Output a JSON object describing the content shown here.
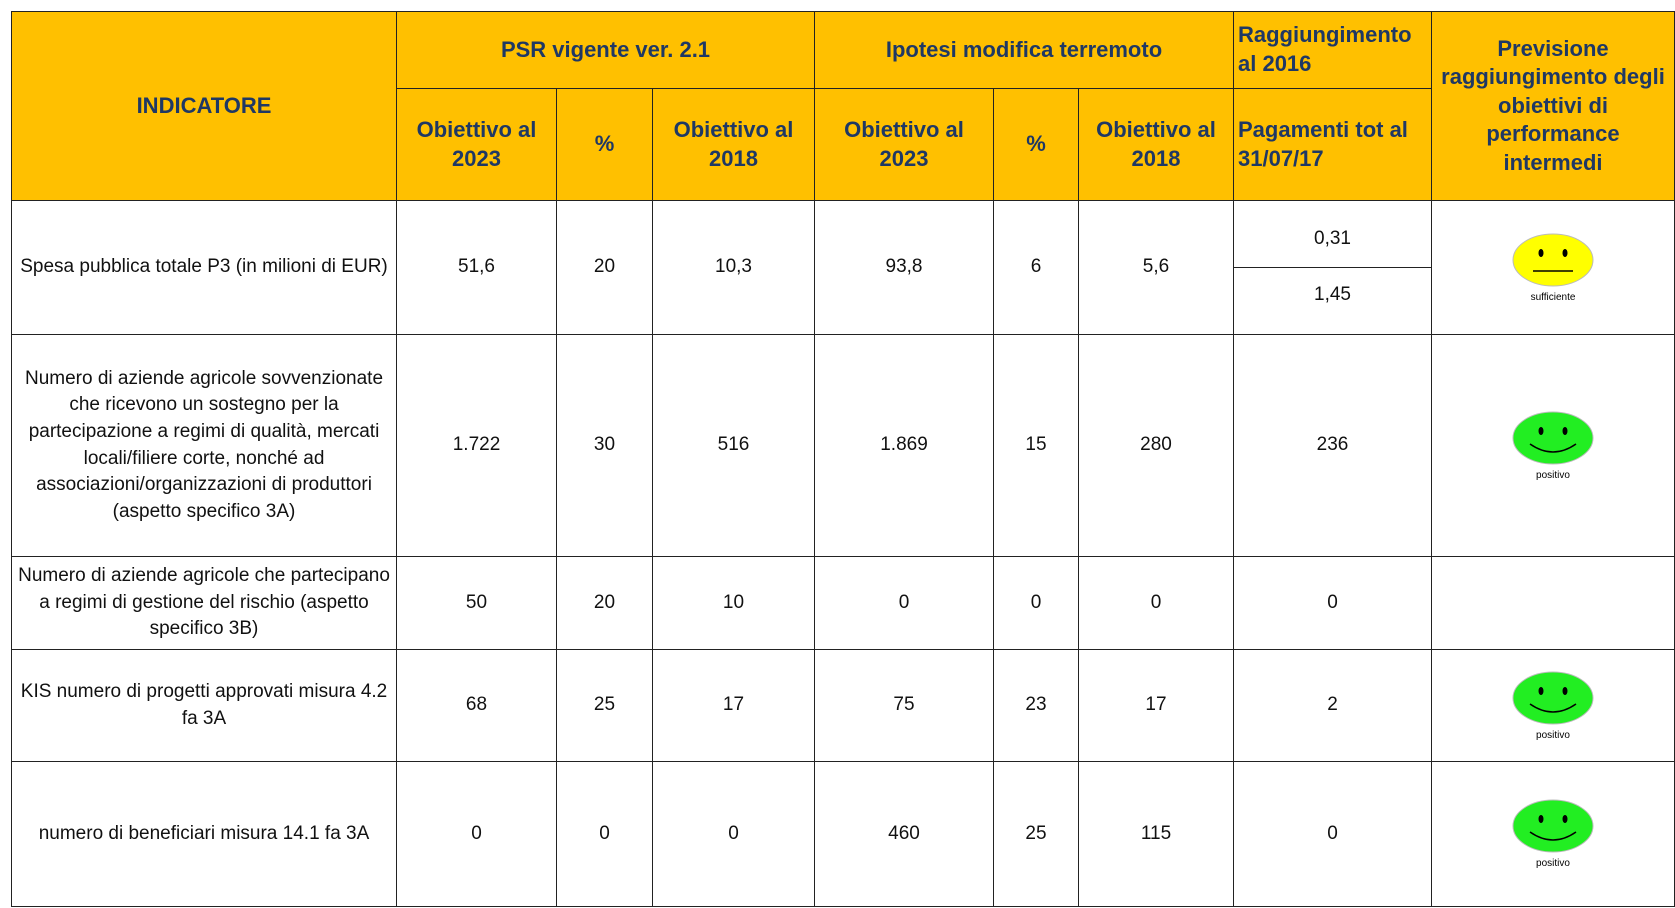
{
  "header": {
    "indicator": "INDICATORE",
    "groups": [
      "PSR vigente ver. 2.1",
      "Ipotesi modifica terremoto"
    ],
    "achievement": "Raggiungimento al 2016",
    "forecast": "Previsione raggiungimento degli obiettivi di performance intermedi",
    "subheaders": [
      "Obiettivo al 2023",
      "%",
      "Obiettivo al 2018",
      "Obiettivo al 2023",
      "%",
      "Obiettivo al 2018",
      "Pagamenti tot al 31/07/17"
    ]
  },
  "rows": [
    {
      "indicator": "Spesa pubblica totale P3 (in milioni di EUR)",
      "values": [
        "51,6",
        "20",
        "10,3",
        "93,8",
        "6",
        "5,6"
      ],
      "achievement": [
        "0,31",
        "1,45"
      ],
      "forecast": "sufficiente",
      "forecast_color": "#ffff00"
    },
    {
      "indicator": "Numero di aziende agricole sovvenzionate che ricevono un sostegno per la partecipazione a regimi di qualità, mercati locali/filiere corte, nonché ad associazioni/organizzazioni di produttori (aspetto specifico 3A)",
      "values": [
        "1.722",
        "30",
        "516",
        "1.869",
        "15",
        "280"
      ],
      "achievement": [
        "236"
      ],
      "forecast": "positivo",
      "forecast_color": "#22ee22"
    },
    {
      "indicator": "Numero di aziende agricole che partecipano a regimi di gestione del rischio (aspetto specifico 3B)",
      "values": [
        "50",
        "20",
        "10",
        "0",
        "0",
        "0"
      ],
      "achievement": [
        "0"
      ],
      "forecast": null,
      "forecast_color": null
    },
    {
      "indicator": "KIS numero di progetti approvati misura 4.2 fa 3A",
      "values": [
        "68",
        "25",
        "17",
        "75",
        "23",
        "17"
      ],
      "achievement": [
        "2"
      ],
      "forecast": "positivo",
      "forecast_color": "#22ee22"
    },
    {
      "indicator": "numero di beneficiari misura 14.1 fa 3A",
      "values": [
        "0",
        "0",
        "0",
        "460",
        "25",
        "115"
      ],
      "achievement": [
        "0"
      ],
      "forecast": "positivo",
      "forecast_color": "#22ee22"
    }
  ]
}
